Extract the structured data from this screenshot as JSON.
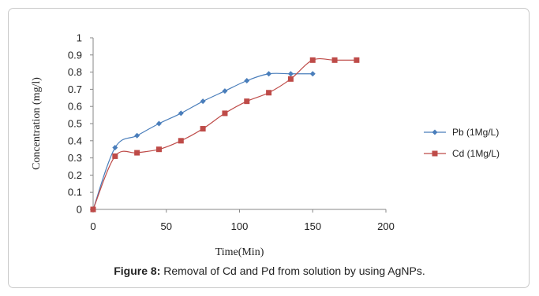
{
  "chart_data": {
    "type": "line",
    "title": "",
    "xlabel": "Time(Min)",
    "ylabel": "Concentration (mg/l)",
    "xlim": [
      0,
      200
    ],
    "ylim": [
      0,
      1
    ],
    "x_ticks": [
      "0",
      "50",
      "100",
      "150",
      "200"
    ],
    "y_ticks": [
      "0",
      "0.1",
      "0.2",
      "0.3",
      "0.4",
      "0.5",
      "0.6",
      "0.7",
      "0.8",
      "0.9",
      "1"
    ],
    "grid": false,
    "legend_position": "right",
    "series": [
      {
        "name": "Pb (1Mg/L)",
        "color": "#4a7ebb",
        "marker": "diamond",
        "x": [
          0,
          15,
          30,
          45,
          60,
          75,
          90,
          105,
          120,
          135,
          150
        ],
        "y": [
          0,
          0.36,
          0.43,
          0.5,
          0.56,
          0.63,
          0.69,
          0.75,
          0.79,
          0.79,
          0.79
        ]
      },
      {
        "name": "Cd (1Mg/L)",
        "color": "#be4b48",
        "marker": "square",
        "x": [
          0,
          15,
          30,
          45,
          60,
          75,
          90,
          105,
          120,
          135,
          150,
          165,
          180
        ],
        "y": [
          0,
          0.31,
          0.33,
          0.35,
          0.4,
          0.47,
          0.56,
          0.63,
          0.68,
          0.76,
          0.87,
          0.87,
          0.87
        ]
      }
    ]
  },
  "caption": {
    "label": "Figure 8:",
    "text": " Removal of Cd and Pd from solution by using AgNPs."
  }
}
